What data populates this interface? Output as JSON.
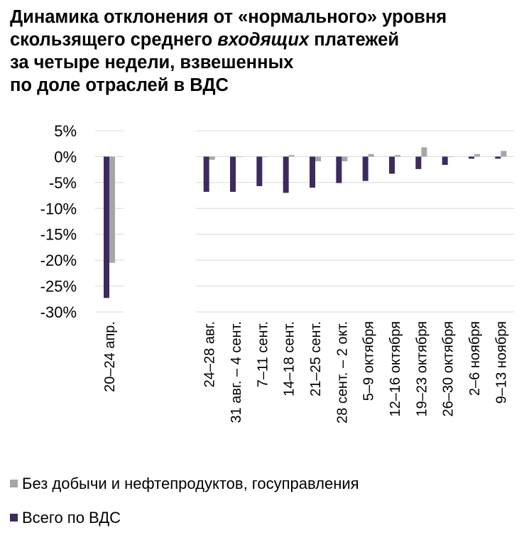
{
  "title": {
    "line1": "Динамика отклонения от «нормального» уровня",
    "line2_pre": "скользящего среднего ",
    "line2_em": "входящих",
    "line2_post": " платежей",
    "line3": "за четыре недели, взвешенных",
    "line4": "по доле отраслей в ВДС"
  },
  "colors": {
    "total": "#3d2a5f",
    "excl": "#a6a6a6",
    "grid": "#d9d9d9"
  },
  "chart_data": {
    "type": "bar",
    "ylim": [
      -30,
      5
    ],
    "yticks": [
      5,
      0,
      -5,
      -10,
      -15,
      -20,
      -25,
      -30
    ],
    "ytick_labels": [
      "5%",
      "0%",
      "-5%",
      "-10%",
      "-15%",
      "-20%",
      "-25%",
      "-30%"
    ],
    "grid": true,
    "legend_position": "bottom-left",
    "panels": [
      {
        "categories": [
          "20–24 апр."
        ]
      },
      {
        "categories": [
          "24–28 авг.",
          "31 авг. – 4 сент.",
          "7–11 сент.",
          "14–18 сент.",
          "21–25 сент.",
          "28 сент. – 2 окт.",
          "5–9 октября",
          "12–16 октября",
          "19–23 октября",
          "26–30 октября",
          "2–6 ноября",
          "9–13 ноября"
        ]
      }
    ],
    "series": [
      {
        "name": "Всего по ВДС",
        "color": "#3d2a5f",
        "values": [
          -27.3,
          -6.8,
          -6.8,
          -5.7,
          -7.0,
          -6.0,
          -5.1,
          -4.7,
          -3.3,
          -2.4,
          -1.6,
          -0.4,
          -0.4
        ]
      },
      {
        "name": "Без добычи и нефтепродуктов, госуправления",
        "color": "#a6a6a6",
        "values": [
          -20.5,
          -0.6,
          0.0,
          0.0,
          0.3,
          -0.9,
          -0.9,
          0.5,
          0.3,
          1.8,
          0.0,
          0.5,
          1.1
        ]
      }
    ]
  },
  "legend": {
    "excl_label": "Без добычи и нефтепродуктов, госуправления",
    "total_label": "Всего по ВДС"
  }
}
